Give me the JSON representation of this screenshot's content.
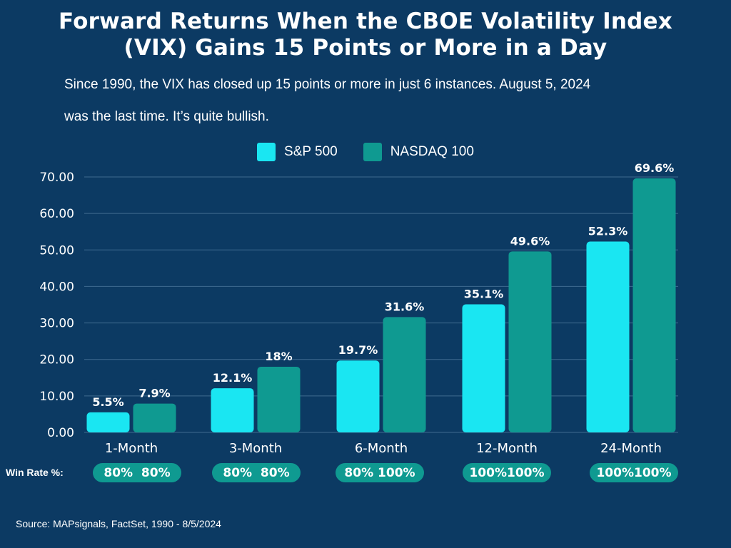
{
  "title_line1": "Forward Returns When the CBOE Volatility Index",
  "title_line2": "(VIX) Gains 15 Points or More in a Day",
  "subtitle_line1": "Since 1990, the VIX has closed up 15 points or more in just 6 instances. August 5, 2024",
  "subtitle_line2": "was the last time. It’s quite bullish.",
  "win_rate_label": "Win Rate %:",
  "source": "Source: MAPsignals, FactSet, 1990 - 8/5/2024",
  "colors": {
    "background": "#0c3a63",
    "sp500": "#1ae6f2",
    "nasdaq": "#0f9a91",
    "grid": "#3f6a8f"
  },
  "win_rates": [
    {
      "sp500": "80%",
      "nasdaq": "80%",
      "text": "80%  80%"
    },
    {
      "sp500": "80%",
      "nasdaq": "80%",
      "text": "80%  80%"
    },
    {
      "sp500": "80%",
      "nasdaq": "100%",
      "text": "80% 100%"
    },
    {
      "sp500": "100%",
      "nasdaq": "100%",
      "text": "100%100%"
    },
    {
      "sp500": "100%",
      "nasdaq": "100%",
      "text": "100%100%"
    }
  ],
  "chart_data": {
    "type": "bar",
    "categories": [
      "1-Month",
      "3-Month",
      "6-Month",
      "12-Month",
      "24-Month"
    ],
    "series": [
      {
        "name": "S&P 500",
        "values": [
          5.5,
          12.1,
          19.7,
          35.1,
          52.3
        ],
        "labels": [
          "5.5%",
          "12.1%",
          "19.7%",
          "35.1%",
          "52.3%"
        ]
      },
      {
        "name": "NASDAQ 100",
        "values": [
          7.9,
          18,
          31.6,
          49.6,
          69.6
        ],
        "labels": [
          "7.9%",
          "18%",
          "31.6%",
          "49.6%",
          "69.6%"
        ]
      }
    ],
    "yticks": [
      "0.00",
      "10.00",
      "20.00",
      "30.00",
      "40.00",
      "50.00",
      "60.00",
      "70.00"
    ],
    "ylim": [
      0,
      70
    ],
    "grid": true,
    "legend_position": "top-center"
  }
}
